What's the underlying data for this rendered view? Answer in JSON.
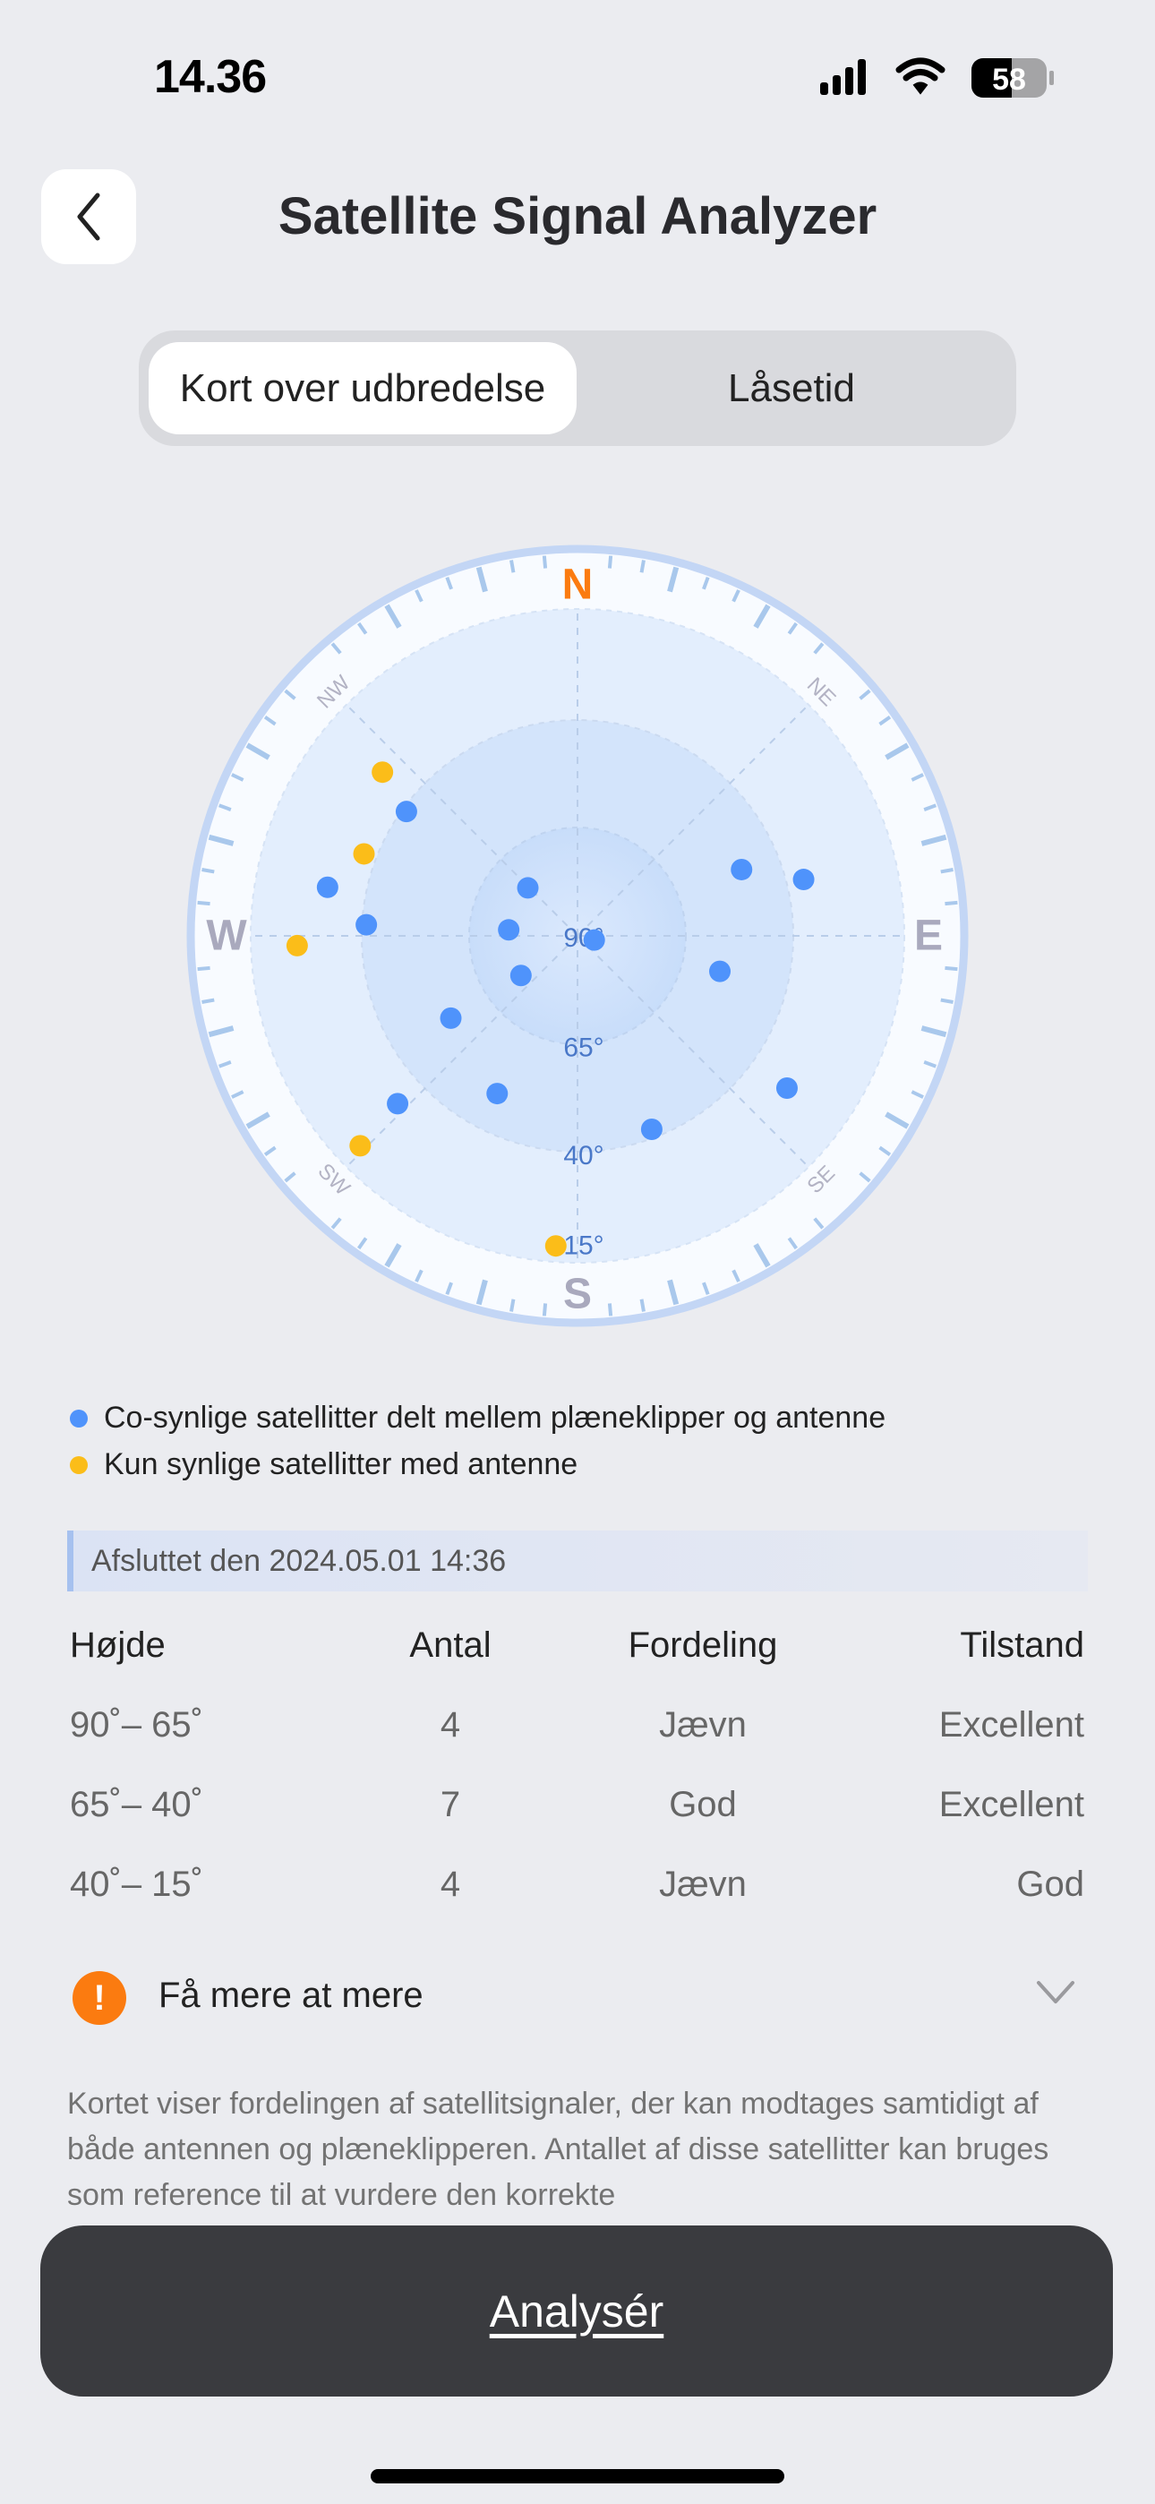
{
  "status_bar": {
    "time": "14.36",
    "battery": "58"
  },
  "header": {
    "title": "Satellite Signal Analyzer",
    "back_icon": "chevron-left-icon"
  },
  "tabs": [
    {
      "label": "Kort over udbredelse",
      "selected": true
    },
    {
      "label": "Låsetid",
      "selected": false
    }
  ],
  "chart_data": {
    "type": "scatter",
    "subtype": "polar-sky-plot",
    "compass": [
      "N",
      "NE",
      "E",
      "SE",
      "S",
      "SW",
      "W",
      "NW"
    ],
    "elevation_rings": [
      "90°",
      "65°",
      "40°",
      "15°"
    ],
    "colors": {
      "shared": "#4f93fb",
      "antenna_only": "#fbbd19",
      "north": "#fb7b10"
    },
    "series": [
      {
        "name": "Co-synlige satellitter delt mellem plæneklipper og antenne",
        "color": "#4f93fb",
        "points": [
          {
            "azimuth": 306,
            "elevation": 41
          },
          {
            "azimuth": 281,
            "elevation": 31
          },
          {
            "azimuth": 273,
            "elevation": 41
          },
          {
            "azimuth": 314,
            "elevation": 74
          },
          {
            "azimuth": 275,
            "elevation": 74
          },
          {
            "azimuth": 235,
            "elevation": 74
          },
          {
            "azimuth": 104,
            "elevation": 86
          },
          {
            "azimuth": 68,
            "elevation": 49
          },
          {
            "azimuth": 76,
            "elevation": 36
          },
          {
            "azimuth": 104,
            "elevation": 56
          },
          {
            "azimuth": 237,
            "elevation": 55
          },
          {
            "azimuth": 207,
            "elevation": 49
          },
          {
            "azimuth": 227,
            "elevation": 33
          },
          {
            "azimuth": 159,
            "elevation": 42
          },
          {
            "azimuth": 126,
            "elevation": 30
          }
        ]
      },
      {
        "name": "Kun synlige satellitter med antenne",
        "color": "#fbbd19",
        "points": [
          {
            "azimuth": 310,
            "elevation": 31
          },
          {
            "azimuth": 291,
            "elevation": 37
          },
          {
            "azimuth": 268,
            "elevation": 25
          },
          {
            "azimuth": 226,
            "elevation": 20
          },
          {
            "azimuth": 184,
            "elevation": 18
          }
        ]
      }
    ]
  },
  "legend": [
    {
      "label": "Co-synlige satellitter delt mellem plæneklipper og antenne",
      "color": "#4f93fb"
    },
    {
      "label": "Kun synlige satellitter med antenne",
      "color": "#fbbd19"
    }
  ],
  "completed": "Afsluttet den 2024.05.01 14:36",
  "table": {
    "headers": [
      "Højde",
      "Antal",
      "Fordeling",
      "Tilstand"
    ],
    "rows": [
      [
        "90˚– 65˚",
        "4",
        "Jævn",
        "Excellent"
      ],
      [
        "65˚– 40˚",
        "7",
        "God",
        "Excellent"
      ],
      [
        "40˚– 15˚",
        "4",
        "Jævn",
        "God"
      ]
    ]
  },
  "info": {
    "icon": "exclamation-icon",
    "label": "Få mere at mere"
  },
  "description": "Kortet viser fordelingen af satellitsignaler, der kan modtages samtidigt af både antennen og plæneklipperen. Antallet af disse satellitter kan bruges som reference til at vurdere den korrekte",
  "analyze_button": "Analysér"
}
